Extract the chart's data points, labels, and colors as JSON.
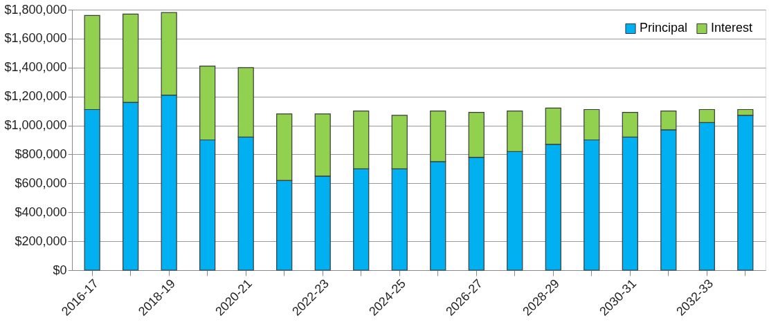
{
  "chart_data": {
    "type": "bar",
    "stacked": true,
    "categories": [
      "2016-17",
      null,
      "2018-19",
      null,
      "2020-21",
      null,
      "2022-23",
      null,
      "2024-25",
      null,
      "2026-27",
      null,
      "2028-29",
      null,
      "2030-31",
      null,
      "2032-33",
      null
    ],
    "series": [
      {
        "name": "Principal",
        "color": "#00b0f0",
        "values": [
          1110000,
          1160000,
          1210000,
          900000,
          920000,
          620000,
          650000,
          700000,
          700000,
          750000,
          780000,
          820000,
          870000,
          900000,
          920000,
          970000,
          1020000,
          1070000
        ]
      },
      {
        "name": "Interest",
        "color": "#92d050",
        "values": [
          650000,
          610000,
          570000,
          510000,
          480000,
          460000,
          430000,
          400000,
          370000,
          350000,
          310000,
          280000,
          250000,
          210000,
          170000,
          130000,
          90000,
          40000
        ]
      }
    ],
    "ylim": [
      0,
      1800000
    ],
    "yticks": [
      {
        "value": 0,
        "label": "$0"
      },
      {
        "value": 200000,
        "label": "$200,000"
      },
      {
        "value": 400000,
        "label": "$400,000"
      },
      {
        "value": 600000,
        "label": "$600,000"
      },
      {
        "value": 800000,
        "label": "$800,000"
      },
      {
        "value": 1000000,
        "label": "$1,000,000"
      },
      {
        "value": 1200000,
        "label": "$1,200,000"
      },
      {
        "value": 1400000,
        "label": "$1,400,000"
      },
      {
        "value": 1600000,
        "label": "$1,600,000"
      },
      {
        "value": 1800000,
        "label": "$1,800,000"
      }
    ],
    "grid": "y",
    "legend": "top right"
  }
}
